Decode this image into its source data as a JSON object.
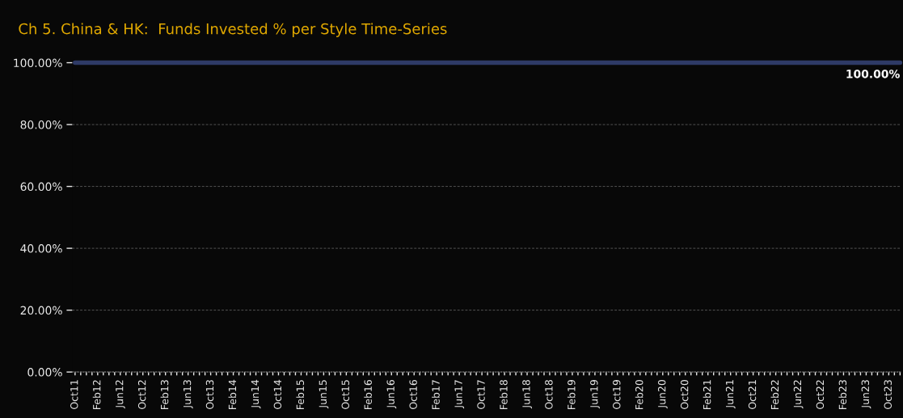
{
  "chart_data": {
    "type": "line",
    "title": "Ch 5. China & HK:  Funds Invested % per Style Time-Series",
    "categories": [
      "Oct11",
      null,
      null,
      null,
      "Feb12",
      null,
      null,
      null,
      "Jun12",
      null,
      null,
      null,
      "Oct12",
      null,
      null,
      null,
      "Feb13",
      null,
      null,
      null,
      "Jun13",
      null,
      null,
      null,
      "Oct13",
      null,
      null,
      null,
      "Feb14",
      null,
      null,
      null,
      "Jun14",
      null,
      null,
      null,
      "Oct14",
      null,
      null,
      null,
      "Feb15",
      null,
      null,
      null,
      "Jun15",
      null,
      null,
      null,
      "Oct15",
      null,
      null,
      null,
      "Feb16",
      null,
      null,
      null,
      "Jun16",
      null,
      null,
      null,
      "Oct16",
      null,
      null,
      null,
      "Feb17",
      null,
      null,
      null,
      "Jun17",
      null,
      null,
      null,
      "Oct17",
      null,
      null,
      null,
      "Feb18",
      null,
      null,
      null,
      "Jun18",
      null,
      null,
      null,
      "Oct18",
      null,
      null,
      null,
      "Feb19",
      null,
      null,
      null,
      "Jun19",
      null,
      null,
      null,
      "Oct19",
      null,
      null,
      null,
      "Feb20",
      null,
      null,
      null,
      "Jun20",
      null,
      null,
      null,
      "Oct20",
      null,
      null,
      null,
      "Feb21",
      null,
      null,
      null,
      "Jun21",
      null,
      null,
      null,
      "Oct21",
      null,
      null,
      null,
      "Feb22",
      null,
      null,
      null,
      "Jun22",
      null,
      null,
      null,
      "Oct22",
      null,
      null,
      null,
      "Feb23",
      null,
      null,
      null,
      "Jun23",
      null,
      null,
      null,
      "Oct23",
      null,
      null
    ],
    "series": [
      {
        "color": "#2e3a66",
        "values": [
          100,
          100,
          100,
          100,
          100,
          100,
          100,
          100,
          100,
          100,
          100,
          100,
          100,
          100,
          100,
          100,
          100,
          100,
          100,
          100,
          100,
          100,
          100,
          100,
          100,
          100,
          100,
          100,
          100,
          100,
          100,
          100,
          100,
          100,
          100,
          100,
          100,
          100,
          100,
          100,
          100,
          100,
          100,
          100,
          100,
          100,
          100,
          100,
          100,
          100,
          100,
          100,
          100,
          100,
          100,
          100,
          100,
          100,
          100,
          100,
          100,
          100,
          100,
          100,
          100,
          100,
          100,
          100,
          100,
          100,
          100,
          100,
          100,
          100,
          100,
          100,
          100,
          100,
          100,
          100,
          100,
          100,
          100,
          100,
          100,
          100,
          100,
          100,
          100,
          100,
          100,
          100,
          100,
          100,
          100,
          100,
          100,
          100,
          100,
          100,
          100,
          100,
          100,
          100,
          100,
          100,
          100,
          100,
          100,
          100,
          100,
          100,
          100,
          100,
          100,
          100,
          100,
          100,
          100,
          100,
          100,
          100,
          100,
          100,
          100,
          100,
          100,
          100,
          100,
          100,
          100,
          100,
          100,
          100,
          100,
          100,
          100,
          100,
          100,
          100,
          100,
          100,
          100,
          100,
          100,
          100,
          100
        ],
        "value_labels": [
          null,
          null,
          null,
          null,
          null,
          null,
          null,
          null,
          null,
          null,
          null,
          null,
          null,
          null,
          null,
          null,
          null,
          null,
          null,
          null,
          null,
          null,
          null,
          null,
          null,
          null,
          null,
          null,
          null,
          null,
          null,
          null,
          null,
          null,
          null,
          null,
          null,
          null,
          null,
          null,
          null,
          null,
          null,
          null,
          null,
          null,
          null,
          null,
          null,
          null,
          null,
          null,
          null,
          null,
          null,
          null,
          null,
          null,
          null,
          null,
          null,
          null,
          null,
          null,
          null,
          null,
          null,
          null,
          null,
          null,
          null,
          null,
          null,
          null,
          null,
          null,
          null,
          null,
          null,
          null,
          null,
          null,
          null,
          null,
          null,
          null,
          null,
          null,
          null,
          null,
          null,
          null,
          null,
          null,
          null,
          null,
          null,
          null,
          null,
          null,
          null,
          null,
          null,
          null,
          null,
          null,
          null,
          null,
          null,
          null,
          null,
          null,
          null,
          null,
          null,
          null,
          null,
          null,
          null,
          null,
          null,
          null,
          null,
          null,
          null,
          null,
          null,
          null,
          null,
          null,
          null,
          null,
          null,
          null,
          null,
          null,
          null,
          null,
          null,
          null,
          null,
          null,
          null,
          null,
          null,
          null,
          "100.00%"
        ]
      }
    ],
    "ylim": [
      0,
      100
    ],
    "yticks": [
      {
        "value": 0,
        "label": "0.00%"
      },
      {
        "value": 20,
        "label": "20.00%"
      },
      {
        "value": 40,
        "label": "40.00%"
      },
      {
        "value": 60,
        "label": "60.00%"
      },
      {
        "value": 80,
        "label": "80.00%"
      },
      {
        "value": 100,
        "label": "100.00%"
      }
    ],
    "grid": "y",
    "line_style": "solid"
  }
}
